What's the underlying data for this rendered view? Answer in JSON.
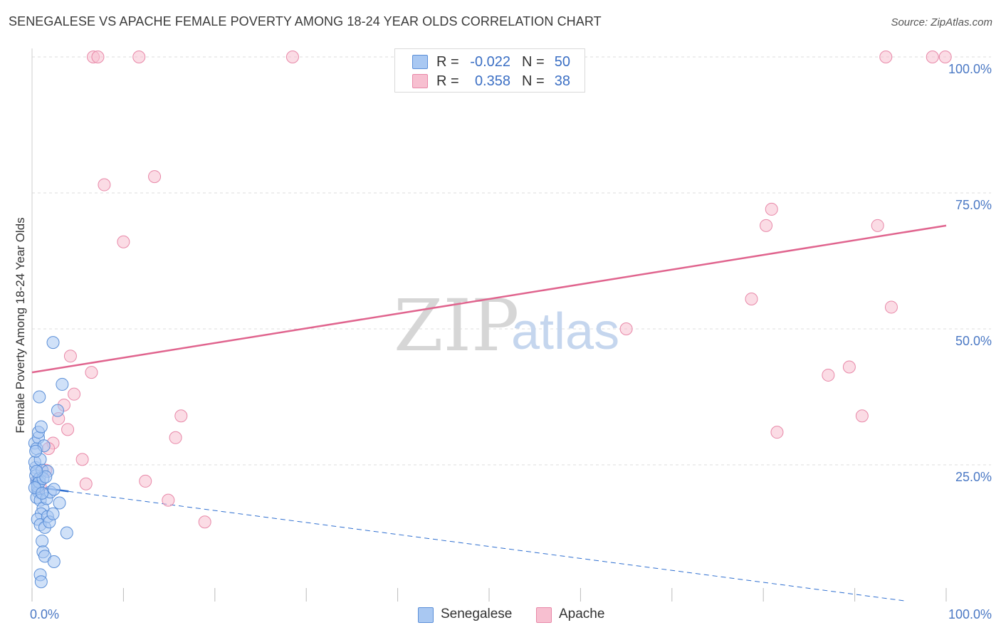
{
  "title": "SENEGALESE VS APACHE FEMALE POVERTY AMONG 18-24 YEAR OLDS CORRELATION CHART",
  "source": "Source: ZipAtlas.com",
  "watermark": {
    "zip": "ZIP",
    "atlas": "atlas"
  },
  "legend_top": {
    "rows": [
      {
        "r_label": "R =",
        "r_value": "-0.022",
        "n_label": "N =",
        "n_value": "50"
      },
      {
        "r_label": "R =",
        "r_value": "0.358",
        "n_label": "N =",
        "n_value": "38"
      }
    ]
  },
  "legend_bottom": {
    "items": [
      "Senegalese",
      "Apache"
    ]
  },
  "colors": {
    "senegalese_fill": "#a9c8f2",
    "senegalese_stroke": "#5b8fd8",
    "senegalese_line": "#2f6fd0",
    "apache_fill": "#f7bfd0",
    "apache_stroke": "#e888a8",
    "apache_line": "#e0648e",
    "grid": "#dcdcdc",
    "axis_text": "#4a78c4"
  },
  "chart_data": {
    "type": "scatter",
    "title": "SENEGALESE VS APACHE FEMALE POVERTY AMONG 18-24 YEAR OLDS CORRELATION CHART",
    "xlabel": "",
    "ylabel": "Female Poverty Among 18-24 Year Olds",
    "xlim": [
      0,
      100
    ],
    "ylim": [
      0,
      100
    ],
    "x_tick_labels": [
      "0.0%",
      "100.0%"
    ],
    "y_ticks": [
      25,
      50,
      75,
      100
    ],
    "y_tick_labels": [
      "25.0%",
      "50.0%",
      "75.0%",
      "100.0%"
    ],
    "series": [
      {
        "name": "Senegalese",
        "r": -0.022,
        "n": 50,
        "points": [
          [
            0.3,
            29.0
          ],
          [
            0.4,
            24.5
          ],
          [
            0.5,
            22.0
          ],
          [
            0.6,
            20.5
          ],
          [
            0.3,
            25.5
          ],
          [
            0.5,
            28.0
          ],
          [
            0.7,
            30.0
          ],
          [
            0.7,
            31.0
          ],
          [
            0.8,
            37.5
          ],
          [
            1.0,
            32.0
          ],
          [
            0.9,
            26.0
          ],
          [
            0.4,
            23.0
          ],
          [
            0.6,
            21.5
          ],
          [
            0.8,
            22.5
          ],
          [
            1.1,
            24.0
          ],
          [
            1.3,
            28.5
          ],
          [
            0.7,
            20.0
          ],
          [
            0.5,
            19.0
          ],
          [
            0.9,
            18.5
          ],
          [
            1.2,
            17.0
          ],
          [
            1.6,
            18.8
          ],
          [
            1.0,
            16.0
          ],
          [
            0.6,
            15.0
          ],
          [
            0.9,
            14.0
          ],
          [
            1.4,
            13.5
          ],
          [
            1.7,
            15.5
          ],
          [
            1.9,
            14.5
          ],
          [
            2.3,
            16.0
          ],
          [
            1.1,
            11.0
          ],
          [
            1.2,
            9.0
          ],
          [
            1.4,
            8.2
          ],
          [
            2.4,
            7.2
          ],
          [
            0.9,
            4.8
          ],
          [
            1.0,
            3.5
          ],
          [
            1.7,
            23.8
          ],
          [
            2.0,
            20.0
          ],
          [
            2.4,
            20.5
          ],
          [
            3.0,
            18.0
          ],
          [
            3.8,
            12.5
          ],
          [
            2.3,
            47.5
          ],
          [
            2.8,
            35.0
          ],
          [
            3.3,
            39.8
          ],
          [
            0.4,
            27.5
          ],
          [
            0.6,
            21.0
          ],
          [
            0.8,
            21.8
          ],
          [
            1.2,
            22.5
          ],
          [
            1.5,
            22.8
          ],
          [
            0.3,
            20.8
          ],
          [
            0.5,
            23.8
          ],
          [
            1.1,
            19.8
          ]
        ],
        "trend": {
          "x": [
            0,
            100
          ],
          "y": [
            21.0,
            -1.0
          ],
          "solid_until_x": 4.0
        }
      },
      {
        "name": "Apache",
        "r": 0.358,
        "n": 38,
        "points": [
          [
            6.7,
            100
          ],
          [
            7.2,
            100
          ],
          [
            11.7,
            100
          ],
          [
            28.5,
            100
          ],
          [
            93.4,
            100
          ],
          [
            98.5,
            100
          ],
          [
            99.9,
            100
          ],
          [
            7.9,
            76.5
          ],
          [
            13.4,
            78.0
          ],
          [
            10.0,
            66.0
          ],
          [
            4.2,
            45.0
          ],
          [
            6.5,
            42.0
          ],
          [
            4.6,
            38.0
          ],
          [
            3.5,
            36.0
          ],
          [
            2.9,
            33.5
          ],
          [
            3.9,
            31.5
          ],
          [
            2.3,
            29.0
          ],
          [
            1.8,
            28.0
          ],
          [
            5.5,
            26.0
          ],
          [
            1.5,
            24.0
          ],
          [
            0.5,
            22.0
          ],
          [
            0.9,
            21.0
          ],
          [
            5.9,
            21.5
          ],
          [
            12.4,
            22.0
          ],
          [
            16.3,
            34.0
          ],
          [
            15.7,
            30.0
          ],
          [
            14.9,
            18.5
          ],
          [
            18.9,
            14.5
          ],
          [
            65.0,
            50.0
          ],
          [
            78.7,
            55.5
          ],
          [
            80.3,
            69.0
          ],
          [
            80.9,
            72.0
          ],
          [
            92.5,
            69.0
          ],
          [
            94.0,
            54.0
          ],
          [
            87.1,
            41.5
          ],
          [
            89.4,
            43.0
          ],
          [
            81.5,
            31.0
          ],
          [
            90.8,
            34.0
          ]
        ],
        "trend": {
          "x": [
            0,
            100
          ],
          "y": [
            42.0,
            69.0
          ]
        }
      }
    ]
  }
}
